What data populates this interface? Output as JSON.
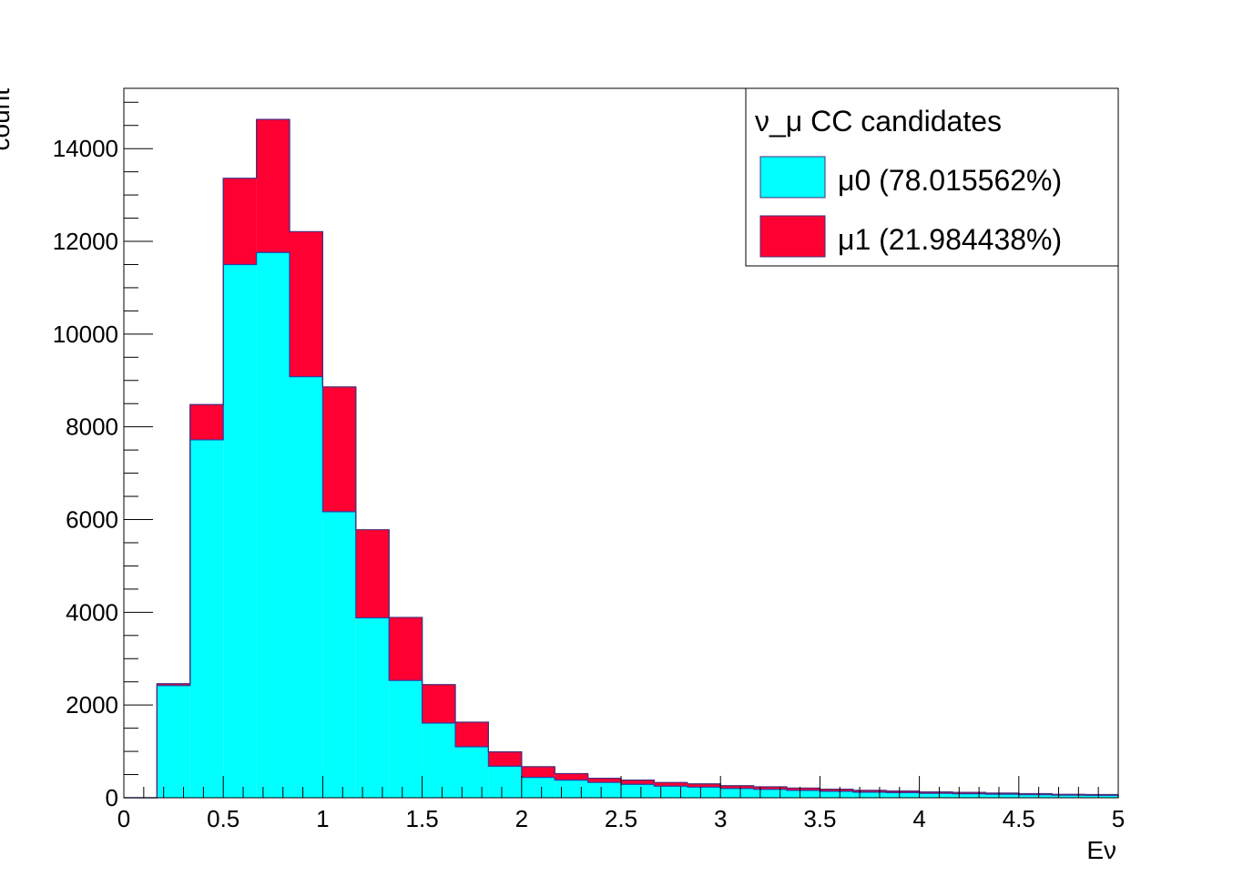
{
  "chart_data": {
    "type": "bar",
    "stacked": true,
    "bin_width": 0.1667,
    "x_bin_edges_start": 0,
    "bins": 30,
    "series": [
      {
        "name": "μ0 (78.015562%)",
        "color": "#00ffff",
        "values": [
          0,
          2420,
          7720,
          11500,
          11760,
          9080,
          6170,
          3880,
          2530,
          1610,
          1100,
          680,
          440,
          380,
          330,
          290,
          250,
          230,
          200,
          180,
          160,
          140,
          120,
          110,
          95,
          85,
          75,
          65,
          55,
          50
        ]
      },
      {
        "name": "μ1 (21.984438%)",
        "color": "#ff0033",
        "values": [
          0,
          40,
          760,
          1860,
          2870,
          3130,
          2690,
          1900,
          1360,
          830,
          530,
          310,
          230,
          140,
          90,
          90,
          80,
          70,
          60,
          55,
          50,
          45,
          40,
          35,
          30,
          30,
          25,
          25,
          20,
          20
        ]
      }
    ],
    "legend_title": "ν_μ CC candidates",
    "legend_position": "top-right",
    "xlabel": "Eν",
    "ylabel": "count",
    "xlim": [
      0,
      5
    ],
    "ylim": [
      0,
      15300
    ],
    "x_ticks": [
      "0",
      "0.5",
      "1",
      "1.5",
      "2",
      "2.5",
      "3",
      "3.5",
      "4",
      "4.5",
      "5"
    ],
    "y_ticks": [
      "0",
      "2000",
      "4000",
      "6000",
      "8000",
      "10000",
      "12000",
      "14000"
    ],
    "grid": false
  }
}
